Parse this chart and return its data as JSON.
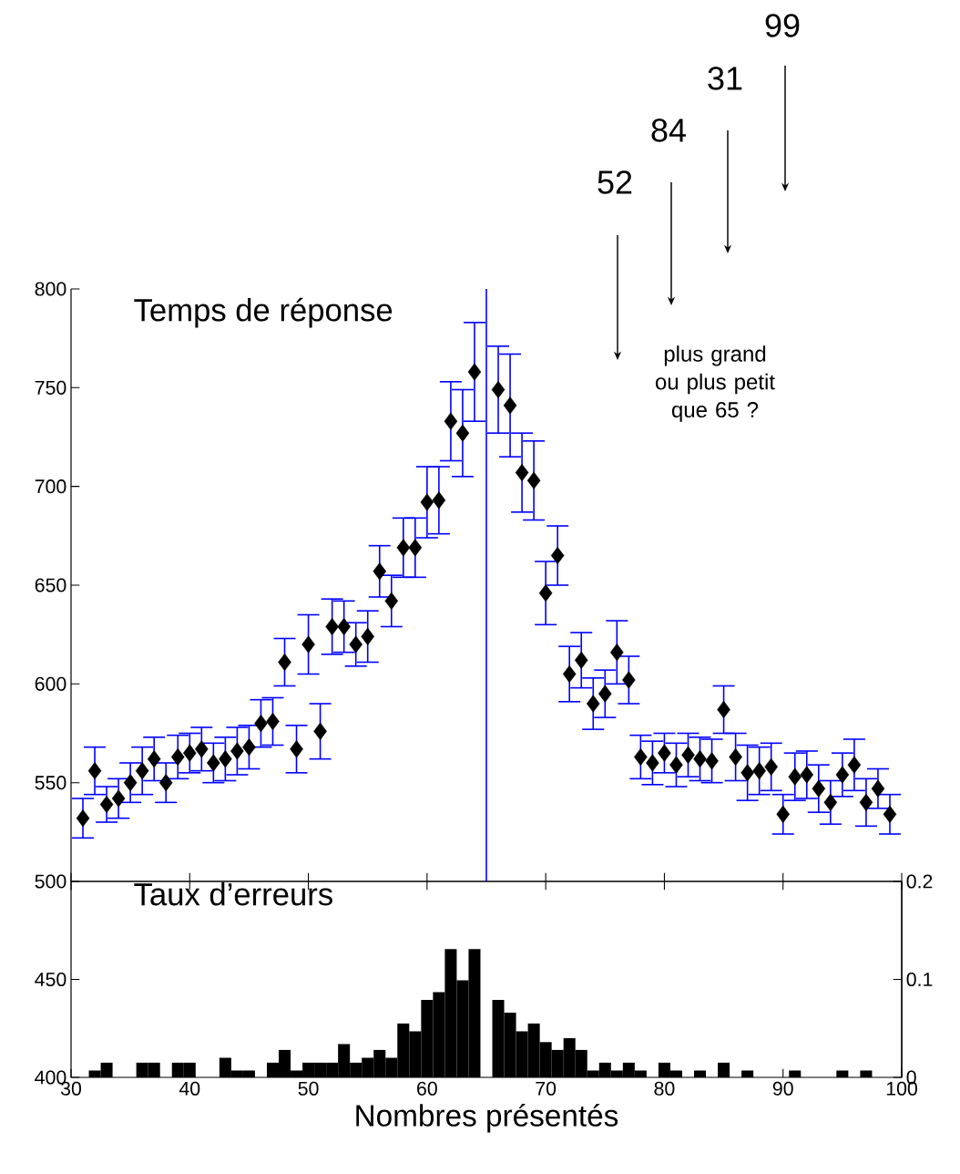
{
  "chart_data": [
    {
      "type": "scatter",
      "title": "Temps de réponse",
      "marker": "diamond",
      "tick_labels": "y",
      "xlim": [
        30,
        100
      ],
      "xticks": [
        30,
        40,
        50,
        60,
        70,
        80,
        90,
        100
      ],
      "ylim": [
        500,
        800
      ],
      "yticks": [
        500,
        550,
        600,
        650,
        700,
        750,
        800
      ],
      "x": [
        31,
        32,
        33,
        34,
        35,
        36,
        37,
        38,
        39,
        40,
        41,
        42,
        43,
        44,
        45,
        46,
        47,
        48,
        49,
        50,
        51,
        52,
        53,
        54,
        55,
        56,
        57,
        58,
        59,
        60,
        61,
        62,
        63,
        64,
        66,
        67,
        68,
        69,
        70,
        71,
        72,
        73,
        74,
        75,
        76,
        77,
        78,
        79,
        80,
        81,
        82,
        83,
        84,
        85,
        86,
        87,
        88,
        89,
        90,
        91,
        92,
        93,
        94,
        95,
        96,
        97,
        98,
        99
      ],
      "series": [
        {
          "color": "#000000",
          "values": [
            532,
            556,
            539,
            542,
            550,
            556,
            562,
            550,
            563,
            565,
            567,
            560,
            562,
            566,
            568,
            580,
            581,
            611,
            567,
            620,
            576,
            629,
            629,
            620,
            624,
            657,
            642,
            669,
            669,
            692,
            693,
            733,
            727,
            758,
            749,
            741,
            707,
            703,
            646,
            665,
            605,
            612,
            590,
            595,
            616,
            602,
            563,
            560,
            565,
            559,
            564,
            562,
            561,
            587,
            563,
            555,
            556,
            558,
            534,
            553,
            554,
            547,
            540,
            554,
            559,
            540,
            547,
            534
          ],
          "errors": [
            10,
            12,
            9,
            10,
            10,
            12,
            11,
            10,
            11,
            10,
            11,
            10,
            11,
            12,
            11,
            12,
            12,
            12,
            12,
            15,
            14,
            14,
            13,
            11,
            13,
            13,
            13,
            15,
            15,
            18,
            17,
            20,
            22,
            25,
            22,
            26,
            20,
            20,
            16,
            15,
            14,
            14,
            13,
            12,
            16,
            12,
            11,
            11,
            10,
            11,
            11,
            11,
            11,
            12,
            12,
            14,
            12,
            12,
            10,
            12,
            12,
            12,
            11,
            11,
            13,
            12,
            10,
            10
          ]
        }
      ],
      "ref_lines": [
        {
          "axis": "x",
          "value": 65,
          "color": "#0000ff"
        }
      ],
      "annotations": [
        "52",
        "84",
        "31",
        "99",
        "plus grand ou plus petit que 65 ?"
      ]
    },
    {
      "type": "bar",
      "title": "Taux d’erreurs",
      "xlabel": "Nombres présentés",
      "xlim": [
        30,
        100
      ],
      "xticks": [
        30,
        40,
        50,
        60,
        70,
        80,
        90,
        100
      ],
      "ylim": [
        400,
        500
      ],
      "yticks": [
        400,
        450
      ],
      "y2lim": [
        0,
        0.2
      ],
      "y2ticks": [
        0,
        0.1,
        0.2
      ],
      "x": [
        31,
        32,
        33,
        34,
        35,
        36,
        37,
        38,
        39,
        40,
        41,
        42,
        43,
        44,
        45,
        46,
        47,
        48,
        49,
        50,
        51,
        52,
        53,
        54,
        55,
        56,
        57,
        58,
        59,
        60,
        61,
        62,
        63,
        64,
        65,
        66,
        67,
        68,
        69,
        70,
        71,
        72,
        73,
        74,
        75,
        76,
        77,
        78,
        79,
        80,
        81,
        82,
        83,
        84,
        85,
        86,
        87,
        88,
        89,
        90,
        91,
        92,
        93,
        94,
        95,
        96,
        97,
        98,
        99
      ],
      "series": [
        {
          "color": "#000000",
          "axis": "y2",
          "values": [
            0,
            0.007,
            0.015,
            0,
            0,
            0.015,
            0.015,
            0,
            0.015,
            0.015,
            0,
            0,
            0.02,
            0.007,
            0.007,
            0,
            0.015,
            0.028,
            0.007,
            0.015,
            0.015,
            0.015,
            0.034,
            0.015,
            0.02,
            0.028,
            0.02,
            0.055,
            0.047,
            0.079,
            0.087,
            0.131,
            0.099,
            0.131,
            0,
            0.079,
            0.066,
            0.047,
            0.055,
            0.036,
            0.028,
            0.04,
            0.028,
            0.007,
            0.015,
            0.007,
            0.015,
            0.007,
            0,
            0.015,
            0.007,
            0,
            0.007,
            0,
            0.015,
            0,
            0.007,
            0,
            0,
            0,
            0.007,
            0,
            0,
            0,
            0.007,
            0,
            0.007,
            0,
            0
          ]
        }
      ]
    }
  ]
}
